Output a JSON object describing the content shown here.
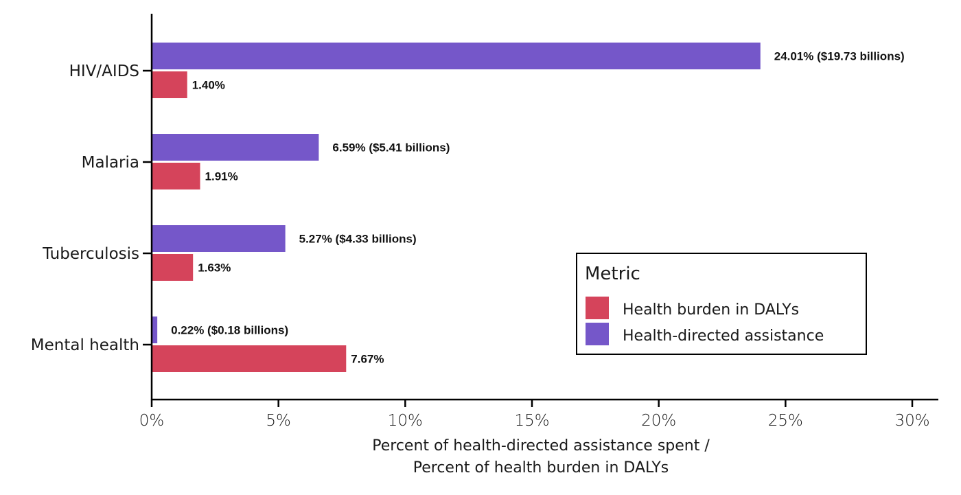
{
  "chart_data": {
    "type": "bar",
    "orientation": "horizontal",
    "title": "",
    "categories": [
      "HIV/AIDS",
      "Malaria",
      "Tuberculosis",
      "Mental health"
    ],
    "series": [
      {
        "name": "Health-directed assistance",
        "color": "#7557c9",
        "values": [
          24.01,
          6.59,
          5.27,
          0.22
        ],
        "labels": [
          "24.01% ($19.73 billions)",
          "6.59% ($5.41 billions)",
          "5.27% ($4.33 billions)",
          "0.22% ($0.18 billions)"
        ]
      },
      {
        "name": "Health burden in DALYs",
        "color": "#d5445b",
        "values": [
          1.4,
          1.91,
          1.63,
          7.67
        ],
        "labels": [
          "1.40%",
          "1.91%",
          "1.63%",
          "7.67%"
        ]
      }
    ],
    "xlabel": [
      "Percent of health-directed assistance spent /",
      "Percent of health burden in DALYs"
    ],
    "ylabel": "",
    "xlim": [
      0,
      30
    ],
    "xticks": [
      0,
      5,
      10,
      15,
      20,
      25,
      30
    ],
    "xtick_labels": [
      "0%",
      "5%",
      "10%",
      "15%",
      "20%",
      "25%",
      "30%"
    ],
    "grid": false,
    "legend": {
      "title": "Metric",
      "placement": "bottom-right",
      "entries": [
        {
          "label": "Health burden in DALYs",
          "color": "#d5445b"
        },
        {
          "label": "Health-directed assistance",
          "color": "#7557c9"
        }
      ]
    }
  }
}
